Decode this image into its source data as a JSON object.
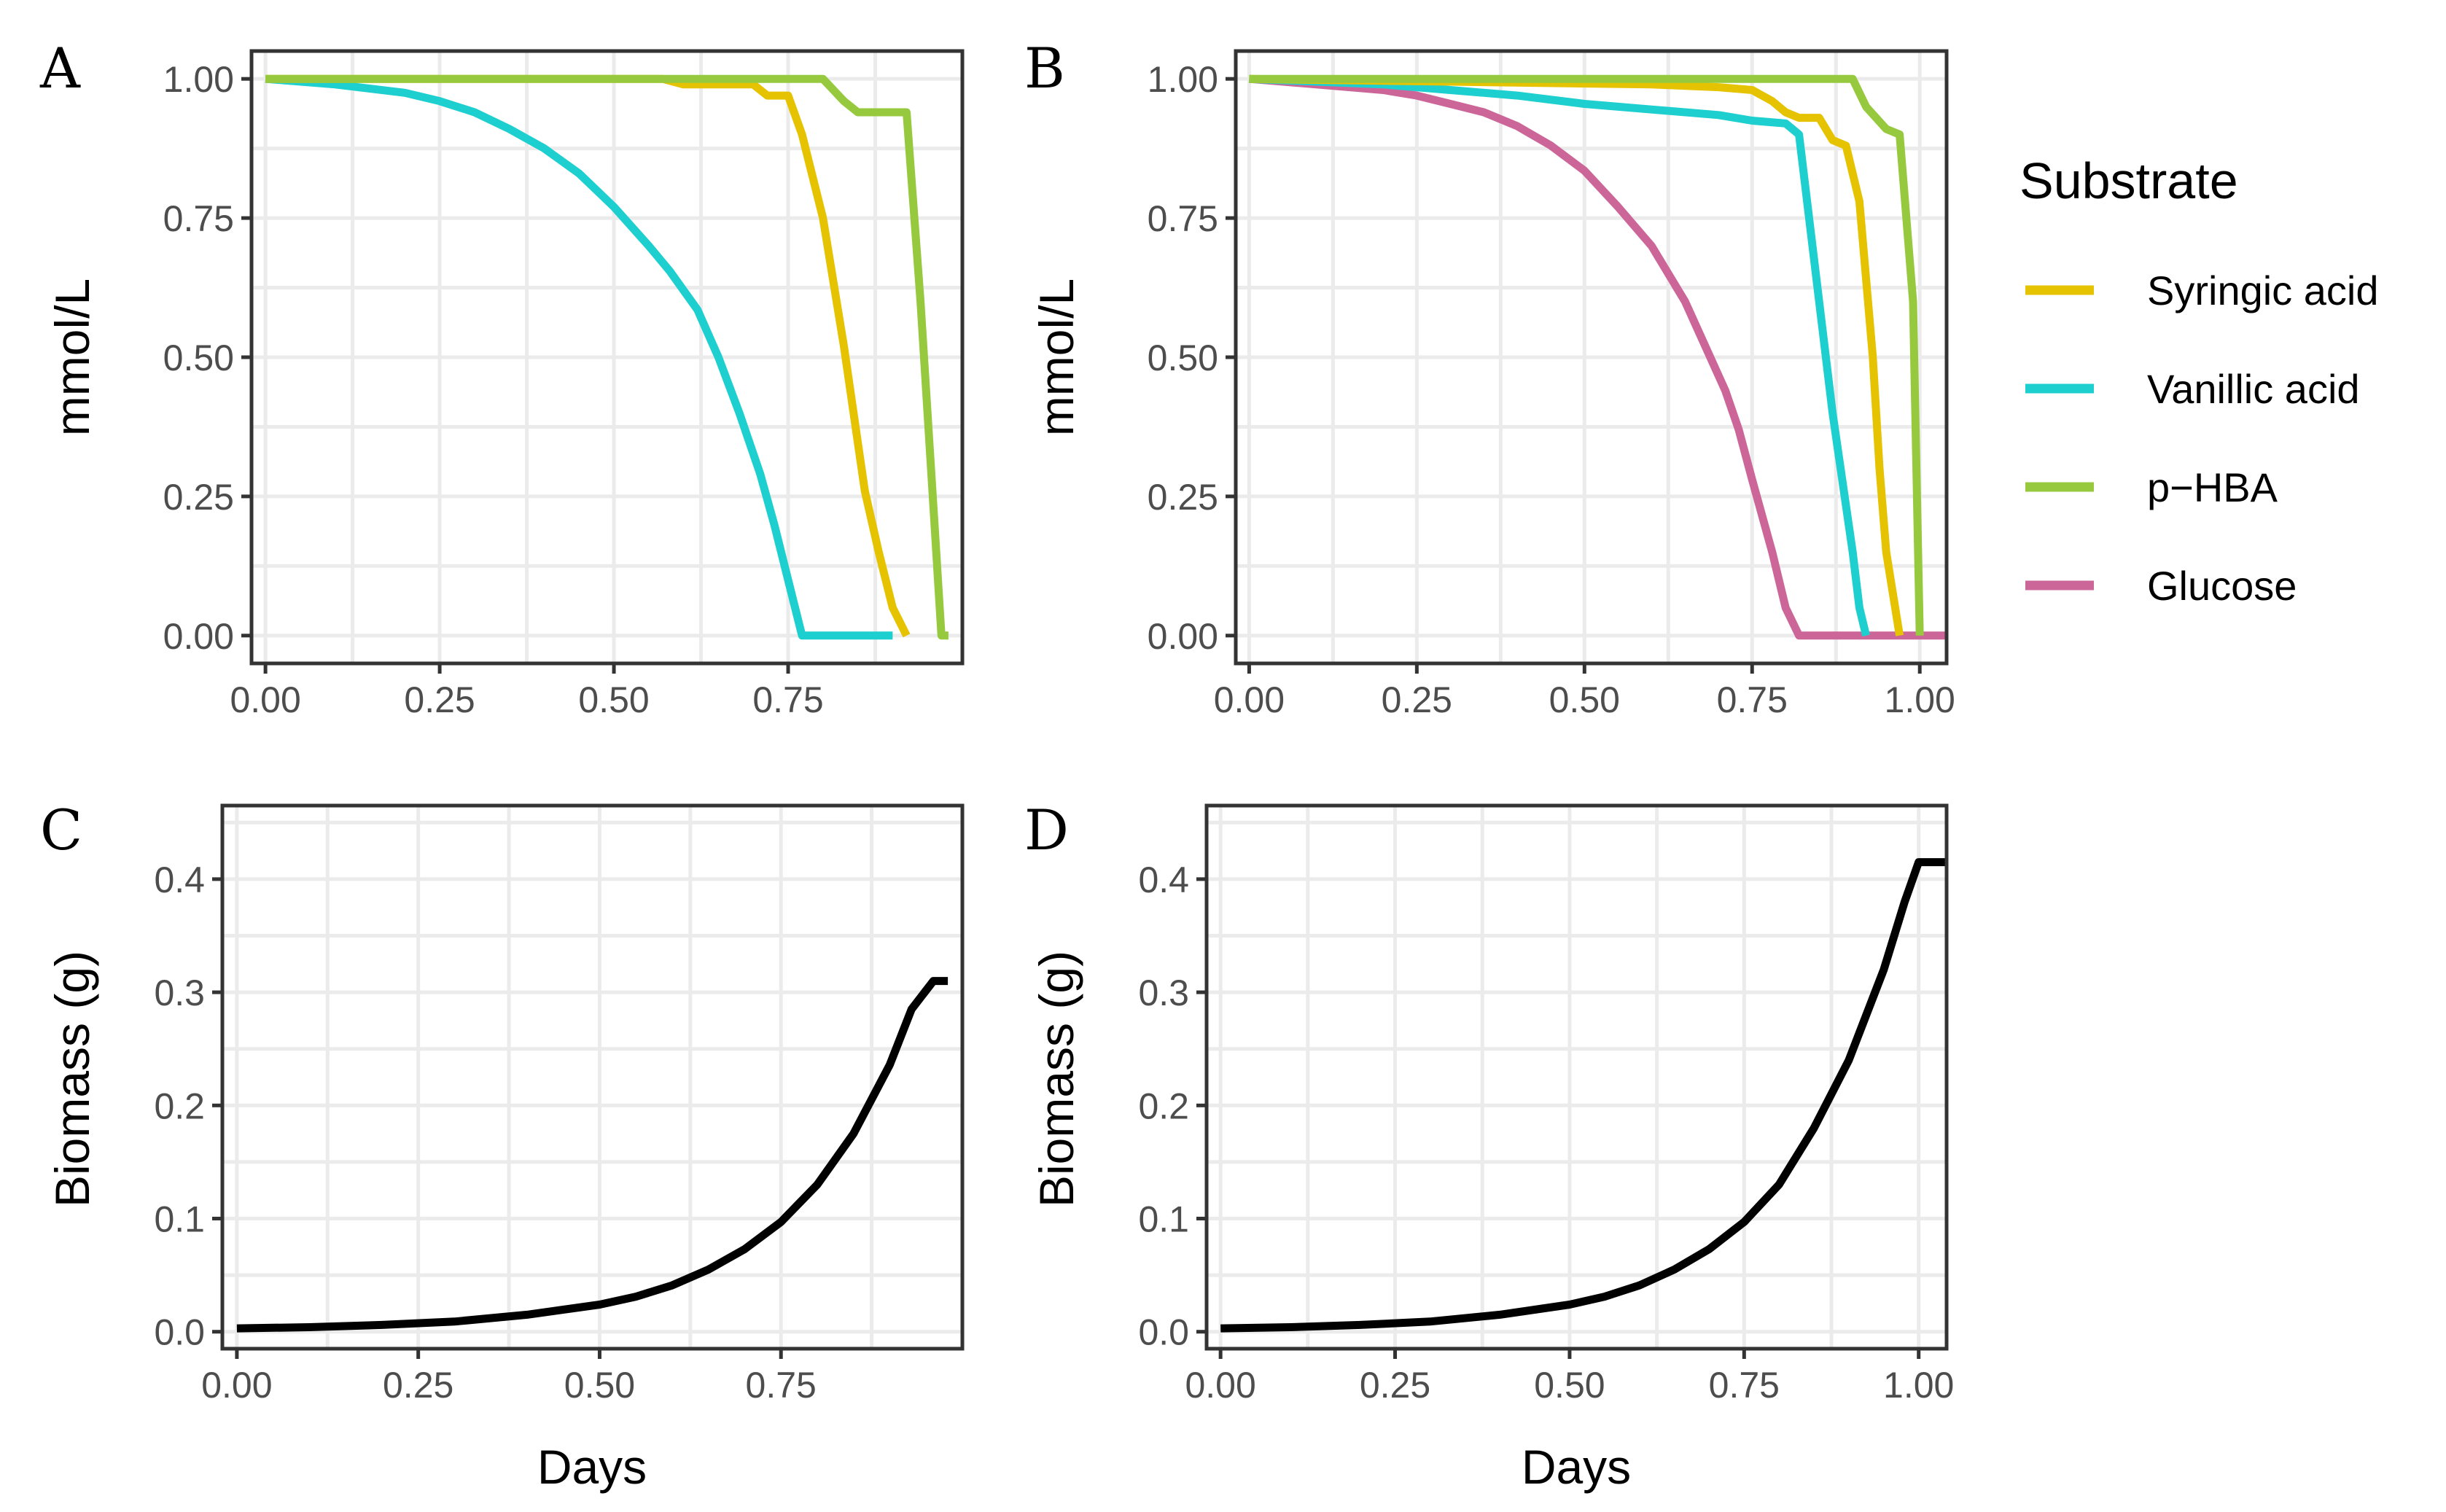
{
  "colors": {
    "syringic": "#E6C300",
    "vanillic": "#1ECFD0",
    "phba": "#96C93D",
    "glucose": "#CC6699",
    "biomass": "#000000"
  },
  "legend": {
    "title": "Substrate",
    "items": [
      {
        "label": "Syringic acid",
        "color": "#E6C300"
      },
      {
        "label": "Vanillic acid",
        "color": "#1ECFD0"
      },
      {
        "label": "p−HBA",
        "color": "#96C93D"
      },
      {
        "label": "Glucose",
        "color": "#CC6699"
      }
    ]
  },
  "chart_data": [
    {
      "panel": "A",
      "type": "line",
      "xlabel": "",
      "ylabel": "mmol/L",
      "xlim": [
        -0.02,
        1.0
      ],
      "ylim": [
        -0.05,
        1.05
      ],
      "xticks": [
        0,
        0.25,
        0.5,
        0.75
      ],
      "xtick_labels": [
        "0.00",
        "0.25",
        "0.50",
        "0.75"
      ],
      "yticks": [
        0,
        0.25,
        0.5,
        0.75,
        1
      ],
      "ytick_labels": [
        "0.00",
        "0.25",
        "0.50",
        "0.75",
        "1.00"
      ],
      "series": [
        {
          "name": "Vanillic acid",
          "color": "#1ECFD0",
          "x": [
            0,
            0.1,
            0.2,
            0.25,
            0.3,
            0.35,
            0.4,
            0.45,
            0.5,
            0.55,
            0.58,
            0.62,
            0.65,
            0.68,
            0.71,
            0.73,
            0.75,
            0.77,
            0.79,
            0.83,
            0.9
          ],
          "y": [
            1.0,
            0.99,
            0.975,
            0.96,
            0.94,
            0.91,
            0.875,
            0.83,
            0.77,
            0.7,
            0.655,
            0.585,
            0.5,
            0.4,
            0.29,
            0.2,
            0.1,
            0.0,
            0.0,
            0.0,
            0.0
          ]
        },
        {
          "name": "Syringic acid",
          "color": "#E6C300",
          "x": [
            0,
            0.57,
            0.6,
            0.7,
            0.72,
            0.75,
            0.77,
            0.8,
            0.83,
            0.86,
            0.88,
            0.9,
            0.92
          ],
          "y": [
            1.0,
            1.0,
            0.99,
            0.99,
            0.97,
            0.97,
            0.9,
            0.75,
            0.52,
            0.26,
            0.15,
            0.05,
            0.0
          ]
        },
        {
          "name": "p−HBA",
          "color": "#96C93D",
          "x": [
            0,
            0.8,
            0.83,
            0.85,
            0.9,
            0.92,
            0.94,
            0.96,
            0.97,
            0.98
          ],
          "y": [
            1.0,
            1.0,
            0.96,
            0.94,
            0.94,
            0.94,
            0.6,
            0.2,
            0.0,
            0.0
          ]
        }
      ]
    },
    {
      "panel": "B",
      "type": "line",
      "xlabel": "",
      "ylabel": "mmol/L",
      "xlim": [
        -0.02,
        1.04
      ],
      "ylim": [
        -0.05,
        1.05
      ],
      "xticks": [
        0,
        0.25,
        0.5,
        0.75,
        1.0
      ],
      "xtick_labels": [
        "0.00",
        "0.25",
        "0.50",
        "0.75",
        "1.00"
      ],
      "yticks": [
        0,
        0.25,
        0.5,
        0.75,
        1
      ],
      "ytick_labels": [
        "0.00",
        "0.25",
        "0.50",
        "0.75",
        "1.00"
      ],
      "series": [
        {
          "name": "Glucose",
          "color": "#CC6699",
          "x": [
            0,
            0.1,
            0.2,
            0.25,
            0.3,
            0.35,
            0.4,
            0.45,
            0.5,
            0.55,
            0.6,
            0.65,
            0.68,
            0.71,
            0.73,
            0.75,
            0.78,
            0.8,
            0.82,
            0.85,
            0.9,
            1.0,
            1.04
          ],
          "y": [
            1.0,
            0.99,
            0.98,
            0.97,
            0.955,
            0.94,
            0.915,
            0.88,
            0.835,
            0.77,
            0.7,
            0.6,
            0.52,
            0.44,
            0.37,
            0.28,
            0.15,
            0.05,
            0.0,
            0.0,
            0.0,
            0.0,
            0.0
          ]
        },
        {
          "name": "Vanillic acid",
          "color": "#1ECFD0",
          "x": [
            0,
            0.2,
            0.3,
            0.4,
            0.5,
            0.6,
            0.7,
            0.75,
            0.8,
            0.82,
            0.85,
            0.87,
            0.9,
            0.91,
            0.92
          ],
          "y": [
            1.0,
            0.99,
            0.98,
            0.97,
            0.955,
            0.945,
            0.935,
            0.925,
            0.92,
            0.9,
            0.6,
            0.4,
            0.15,
            0.05,
            0.0
          ]
        },
        {
          "name": "Syringic acid",
          "color": "#E6C300",
          "x": [
            0,
            0.6,
            0.7,
            0.75,
            0.78,
            0.8,
            0.82,
            0.85,
            0.87,
            0.89,
            0.91,
            0.93,
            0.94,
            0.95,
            0.97
          ],
          "y": [
            1.0,
            0.99,
            0.985,
            0.98,
            0.96,
            0.94,
            0.93,
            0.93,
            0.89,
            0.88,
            0.78,
            0.5,
            0.3,
            0.15,
            0.0
          ]
        },
        {
          "name": "p−HBA",
          "color": "#96C93D",
          "x": [
            0,
            0.7,
            0.9,
            0.92,
            0.95,
            0.97,
            0.99,
            1.0
          ],
          "y": [
            1.0,
            1.0,
            1.0,
            0.95,
            0.91,
            0.9,
            0.6,
            0.0
          ]
        }
      ]
    },
    {
      "panel": "C",
      "type": "line",
      "xlabel": "Days",
      "ylabel": "Biomass (g)",
      "xlim": [
        -0.02,
        1.0
      ],
      "ylim": [
        -0.015,
        0.465
      ],
      "xticks": [
        0,
        0.25,
        0.5,
        0.75
      ],
      "xtick_labels": [
        "0.00",
        "0.25",
        "0.50",
        "0.75"
      ],
      "yticks": [
        0,
        0.1,
        0.2,
        0.3,
        0.4
      ],
      "ytick_labels": [
        "0.0",
        "0.1",
        "0.2",
        "0.3",
        "0.4"
      ],
      "series": [
        {
          "name": "Biomass",
          "color": "#000000",
          "x": [
            0,
            0.1,
            0.2,
            0.3,
            0.4,
            0.5,
            0.55,
            0.6,
            0.65,
            0.7,
            0.75,
            0.8,
            0.85,
            0.9,
            0.93,
            0.96,
            0.98
          ],
          "y": [
            0.003,
            0.004,
            0.006,
            0.009,
            0.015,
            0.024,
            0.031,
            0.041,
            0.055,
            0.073,
            0.097,
            0.13,
            0.175,
            0.236,
            0.285,
            0.31,
            0.31
          ]
        }
      ]
    },
    {
      "panel": "D",
      "type": "line",
      "xlabel": "Days",
      "ylabel": "Biomass (g)",
      "xlim": [
        -0.02,
        1.04
      ],
      "ylim": [
        -0.015,
        0.465
      ],
      "xticks": [
        0,
        0.25,
        0.5,
        0.75,
        1.0
      ],
      "xtick_labels": [
        "0.00",
        "0.25",
        "0.50",
        "0.75",
        "1.00"
      ],
      "yticks": [
        0,
        0.1,
        0.2,
        0.3,
        0.4
      ],
      "ytick_labels": [
        "0.0",
        "0.1",
        "0.2",
        "0.3",
        "0.4"
      ],
      "series": [
        {
          "name": "Biomass",
          "color": "#000000",
          "x": [
            0,
            0.1,
            0.2,
            0.3,
            0.4,
            0.5,
            0.55,
            0.6,
            0.65,
            0.7,
            0.75,
            0.8,
            0.85,
            0.9,
            0.95,
            0.98,
            1.0,
            1.04
          ],
          "y": [
            0.003,
            0.004,
            0.006,
            0.009,
            0.015,
            0.024,
            0.031,
            0.041,
            0.055,
            0.073,
            0.097,
            0.13,
            0.18,
            0.24,
            0.32,
            0.38,
            0.415,
            0.415
          ]
        }
      ]
    }
  ]
}
